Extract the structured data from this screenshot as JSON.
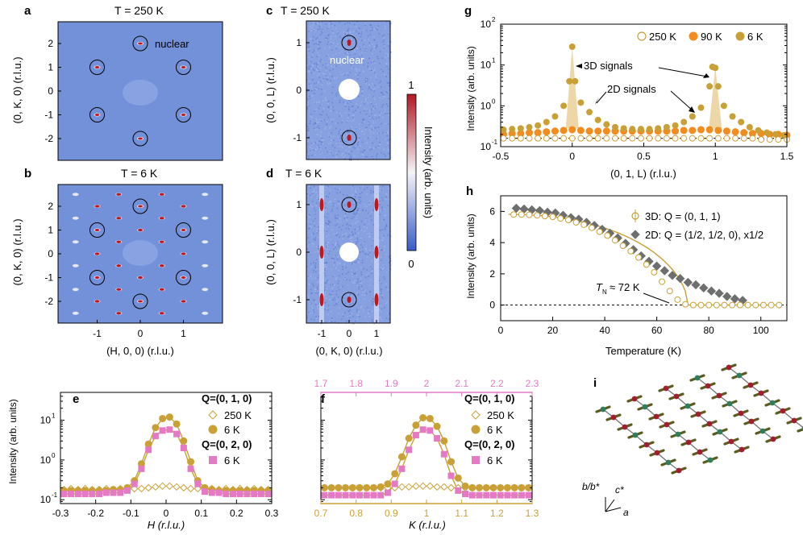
{
  "panel_labels": {
    "a": "a",
    "b": "b",
    "c": "c",
    "d": "d",
    "e": "e",
    "f": "f",
    "g": "g",
    "h": "h",
    "i": "i"
  },
  "titles": {
    "a": "T = 250 K",
    "b": "T = 6 K",
    "c": "T = 250 K",
    "d": "T = 6 K"
  },
  "annotations": {
    "nuclear_a": "nuclear",
    "nuclear_c": "nuclear",
    "signals_3d": "3D signals",
    "signals_2d": "2D signals",
    "tn": "T",
    "tn_sub": "N",
    "tn_val": "≈ 72 K"
  },
  "colorbar": {
    "max": "1",
    "min": "0",
    "label": "Intensity (arb. units)"
  },
  "axes": {
    "ab_y": "(0, K, 0) (r.l.u.)",
    "ab_x": "(H, 0, 0) (r.l.u.)",
    "cd_y": "(0, 0, L) (r.l.u.)",
    "cd_x": "(0, K, 0) (r.l.u.)",
    "e_y": "Intensity (arb. units)",
    "e_x": "H (r.l.u.)",
    "f_x": "K (r.l.u.)",
    "g_y": "Intensity (arb. units)",
    "g_x": "(0, 1, L) (r.l.u.)",
    "h_y": "Intensity (arb. units)",
    "h_x": "Temperature (K)"
  },
  "ticks": {
    "ab_y": [
      "2",
      "1",
      "0",
      "-1",
      "-2"
    ],
    "ab_x": [
      "-1",
      "0",
      "1"
    ],
    "cd_y": [
      "1",
      "0",
      "-1"
    ],
    "cd_x": [
      "-1",
      "0",
      "1"
    ],
    "e_x": [
      "-0.3",
      "-0.2",
      "-0.1",
      "0",
      "0.1",
      "0.2",
      "0.3"
    ],
    "f_x": [
      "0.7",
      "0.8",
      "0.9",
      "1",
      "1.1",
      "1.2",
      "1.3"
    ],
    "f_top": [
      "1.7",
      "1.8",
      "1.9",
      "2",
      "2.1",
      "2.2",
      "2.3"
    ],
    "g_x": [
      "-0.5",
      "0",
      "0.5",
      "1",
      "1.5"
    ],
    "h_x": [
      "0",
      "20",
      "40",
      "60",
      "80",
      "100"
    ],
    "h_y": [
      "0",
      "2",
      "4",
      "6"
    ]
  },
  "legends": {
    "g": [
      "250 K",
      "90 K",
      "6 K"
    ],
    "h": [
      "3D: Q = (0, 1, 1)",
      "2D: Q = (1/2, 1/2, 0), x1/2"
    ],
    "e": [
      "Q=(0, 1, 0)",
      "250 K",
      "6 K",
      "Q=(0, 2, 0)",
      "6 K"
    ],
    "f": [
      "Q=(0, 1, 0)",
      "250 K",
      "6 K",
      "Q=(0, 2, 0)",
      "6 K"
    ]
  },
  "lattice_axes": {
    "b": "b/b*",
    "c": "c*",
    "a": "a"
  },
  "colors": {
    "map_bg": "#7391d9",
    "gold": "#c8a036",
    "orange": "#f28c1e",
    "pink": "#e47ac3",
    "gray": "#6e6e6e",
    "red": "#c0161c"
  },
  "chart_data": [
    {
      "panel": "e",
      "type": "scatter",
      "xlim": [
        -0.3,
        0.3
      ],
      "yscale": "log",
      "ylim": [
        0.08,
        50
      ],
      "series": [
        {
          "name": "250 K",
          "x": [
            -0.29,
            -0.27,
            -0.25,
            -0.23,
            -0.21,
            -0.19,
            -0.17,
            -0.15,
            -0.13,
            -0.11,
            -0.09,
            -0.07,
            -0.05,
            -0.03,
            -0.01,
            0.01,
            0.03,
            0.05,
            0.07,
            0.09,
            0.11,
            0.13,
            0.15,
            0.17,
            0.19,
            0.21,
            0.23,
            0.25,
            0.27,
            0.29
          ],
          "values": [
            0.18,
            0.19,
            0.18,
            0.19,
            0.18,
            0.18,
            0.19,
            0.18,
            0.19,
            0.18,
            0.19,
            0.19,
            0.2,
            0.21,
            0.22,
            0.22,
            0.21,
            0.2,
            0.19,
            0.19,
            0.18,
            0.19,
            0.18,
            0.19,
            0.18,
            0.19,
            0.18,
            0.19,
            0.18,
            0.18
          ]
        },
        {
          "name": "6 K",
          "x": [
            -0.29,
            -0.27,
            -0.25,
            -0.23,
            -0.21,
            -0.19,
            -0.17,
            -0.15,
            -0.13,
            -0.11,
            -0.09,
            -0.07,
            -0.05,
            -0.03,
            -0.01,
            0.01,
            0.03,
            0.05,
            0.07,
            0.09,
            0.11,
            0.13,
            0.15,
            0.17,
            0.19,
            0.21,
            0.23,
            0.25,
            0.27,
            0.29
          ],
          "values": [
            0.17,
            0.17,
            0.17,
            0.17,
            0.17,
            0.17,
            0.17,
            0.18,
            0.18,
            0.2,
            0.3,
            0.8,
            2.5,
            6.5,
            11,
            12,
            8,
            3,
            0.9,
            0.3,
            0.2,
            0.18,
            0.17,
            0.17,
            0.17,
            0.17,
            0.17,
            0.17,
            0.17,
            0.17
          ]
        },
        {
          "name": "Q=(0, 2, 0) 6 K",
          "x": [
            -0.29,
            -0.27,
            -0.25,
            -0.23,
            -0.21,
            -0.19,
            -0.17,
            -0.15,
            -0.13,
            -0.11,
            -0.09,
            -0.07,
            -0.05,
            -0.03,
            -0.01,
            0.01,
            0.03,
            0.05,
            0.07,
            0.09,
            0.11,
            0.13,
            0.15,
            0.17,
            0.19,
            0.21,
            0.23,
            0.25,
            0.27,
            0.29
          ],
          "values": [
            0.14,
            0.14,
            0.14,
            0.14,
            0.14,
            0.14,
            0.15,
            0.15,
            0.15,
            0.17,
            0.25,
            0.6,
            1.8,
            4,
            5.5,
            5.8,
            4.5,
            2,
            0.6,
            0.25,
            0.16,
            0.15,
            0.15,
            0.14,
            0.14,
            0.14,
            0.14,
            0.14,
            0.14,
            0.14
          ]
        }
      ]
    },
    {
      "panel": "f",
      "type": "scatter",
      "xlim": [
        0.7,
        1.3
      ],
      "x2lim": [
        1.7,
        2.3
      ],
      "yscale": "log",
      "ylim": [
        0.08,
        50
      ],
      "series": [
        {
          "name": "250 K",
          "x": [
            0.71,
            0.73,
            0.75,
            0.77,
            0.79,
            0.81,
            0.83,
            0.85,
            0.87,
            0.89,
            0.91,
            0.93,
            0.95,
            0.97,
            0.99,
            1.01,
            1.03,
            1.05,
            1.07,
            1.09,
            1.11,
            1.13,
            1.15,
            1.17,
            1.19,
            1.21,
            1.23,
            1.25,
            1.27,
            1.29
          ],
          "values": [
            0.2,
            0.2,
            0.2,
            0.2,
            0.2,
            0.2,
            0.2,
            0.2,
            0.2,
            0.2,
            0.2,
            0.21,
            0.21,
            0.22,
            0.22,
            0.22,
            0.21,
            0.21,
            0.2,
            0.2,
            0.2,
            0.2,
            0.2,
            0.2,
            0.2,
            0.2,
            0.2,
            0.2,
            0.2,
            0.2
          ]
        },
        {
          "name": "6 K",
          "x": [
            0.71,
            0.73,
            0.75,
            0.77,
            0.79,
            0.81,
            0.83,
            0.85,
            0.87,
            0.89,
            0.91,
            0.93,
            0.95,
            0.97,
            0.99,
            1.01,
            1.03,
            1.05,
            1.07,
            1.09,
            1.11,
            1.13,
            1.15,
            1.17,
            1.19,
            1.21,
            1.23,
            1.25,
            1.27,
            1.29
          ],
          "values": [
            0.2,
            0.2,
            0.2,
            0.2,
            0.2,
            0.2,
            0.2,
            0.2,
            0.21,
            0.25,
            0.45,
            1.2,
            3.5,
            7.5,
            11.5,
            11,
            7,
            3,
            0.9,
            0.35,
            0.22,
            0.2,
            0.2,
            0.2,
            0.2,
            0.2,
            0.2,
            0.2,
            0.2,
            0.2
          ]
        },
        {
          "name": "Q=(0, 2, 0) 6 K",
          "x": [
            0.71,
            0.73,
            0.75,
            0.77,
            0.79,
            0.81,
            0.83,
            0.85,
            0.87,
            0.89,
            0.91,
            0.93,
            0.95,
            0.97,
            0.99,
            1.01,
            1.03,
            1.05,
            1.07,
            1.09,
            1.11,
            1.13,
            1.15,
            1.17,
            1.19,
            1.21,
            1.23,
            1.25,
            1.27,
            1.29
          ],
          "values": [
            0.13,
            0.13,
            0.13,
            0.13,
            0.13,
            0.13,
            0.13,
            0.13,
            0.13,
            0.15,
            0.25,
            0.6,
            1.8,
            4.2,
            5.8,
            5.5,
            3.5,
            1.4,
            0.4,
            0.17,
            0.14,
            0.13,
            0.13,
            0.13,
            0.13,
            0.13,
            0.13,
            0.13,
            0.13,
            0.13
          ]
        }
      ]
    },
    {
      "panel": "g",
      "type": "scatter",
      "xlim": [
        -0.5,
        1.5
      ],
      "yscale": "log",
      "ylim": [
        0.1,
        100
      ],
      "series": [
        {
          "name": "250 K",
          "x": [
            -0.48,
            -0.42,
            -0.36,
            -0.3,
            -0.24,
            -0.18,
            -0.12,
            -0.06,
            0.0,
            0.06,
            0.12,
            0.18,
            0.24,
            0.3,
            0.36,
            0.42,
            0.48,
            0.54,
            0.6,
            0.66,
            0.72,
            0.78,
            0.84,
            0.9,
            0.96,
            1.02,
            1.08,
            1.14,
            1.2,
            1.26,
            1.32,
            1.38,
            1.44,
            1.5
          ],
          "values": [
            0.16,
            0.16,
            0.16,
            0.16,
            0.16,
            0.16,
            0.16,
            0.16,
            0.16,
            0.16,
            0.16,
            0.16,
            0.16,
            0.16,
            0.16,
            0.16,
            0.16,
            0.16,
            0.16,
            0.16,
            0.16,
            0.16,
            0.16,
            0.16,
            0.16,
            0.16,
            0.16,
            0.16,
            0.16,
            0.16,
            0.15,
            0.15,
            0.15,
            0.15
          ]
        },
        {
          "name": "90 K",
          "x": [
            -0.48,
            -0.42,
            -0.36,
            -0.3,
            -0.24,
            -0.18,
            -0.12,
            -0.06,
            0.0,
            0.06,
            0.12,
            0.18,
            0.24,
            0.3,
            0.36,
            0.42,
            0.48,
            0.54,
            0.6,
            0.66,
            0.72,
            0.78,
            0.84,
            0.9,
            0.96,
            1.02,
            1.08,
            1.14,
            1.2,
            1.26,
            1.32,
            1.38,
            1.44,
            1.5
          ],
          "values": [
            0.2,
            0.21,
            0.21,
            0.22,
            0.22,
            0.23,
            0.24,
            0.25,
            0.26,
            0.25,
            0.24,
            0.24,
            0.24,
            0.24,
            0.24,
            0.24,
            0.24,
            0.24,
            0.24,
            0.24,
            0.24,
            0.25,
            0.25,
            0.26,
            0.26,
            0.25,
            0.24,
            0.23,
            0.22,
            0.21,
            0.21,
            0.2,
            0.2,
            0.19
          ]
        },
        {
          "name": "6 K",
          "x": [
            -0.48,
            -0.42,
            -0.36,
            -0.3,
            -0.24,
            -0.18,
            -0.12,
            -0.06,
            -0.02,
            0.0,
            0.02,
            0.06,
            0.12,
            0.18,
            0.24,
            0.3,
            0.36,
            0.42,
            0.48,
            0.54,
            0.6,
            0.66,
            0.72,
            0.78,
            0.84,
            0.9,
            0.96,
            0.98,
            1.0,
            1.02,
            1.06,
            1.12,
            1.18,
            1.24,
            1.3,
            1.36,
            1.42,
            1.48
          ],
          "values": [
            0.26,
            0.27,
            0.28,
            0.3,
            0.33,
            0.4,
            0.55,
            1.0,
            4,
            28,
            4,
            1.2,
            0.7,
            0.45,
            0.35,
            0.3,
            0.28,
            0.27,
            0.27,
            0.27,
            0.28,
            0.3,
            0.33,
            0.4,
            0.55,
            0.9,
            3,
            9,
            8.5,
            3,
            1.0,
            0.55,
            0.4,
            0.3,
            0.25,
            0.22,
            0.2,
            0.19
          ]
        }
      ]
    },
    {
      "panel": "h",
      "type": "scatter",
      "xlim": [
        0,
        110
      ],
      "ylim": [
        -1,
        7
      ],
      "series": [
        {
          "name": "3D: Q = (0, 1, 1)",
          "x": [
            5,
            8,
            11,
            14,
            17,
            20,
            23,
            26,
            29,
            32,
            35,
            38,
            41,
            44,
            47,
            50,
            53,
            56,
            59,
            62,
            65,
            68,
            71,
            74,
            77,
            80,
            83,
            86,
            89,
            92,
            95,
            98,
            101,
            104,
            107
          ],
          "values": [
            5.8,
            5.8,
            5.78,
            5.75,
            5.7,
            5.65,
            5.55,
            5.45,
            5.3,
            5.15,
            4.95,
            4.7,
            4.45,
            4.15,
            3.8,
            3.45,
            3.05,
            2.6,
            2.1,
            1.5,
            0.9,
            0.35,
            0.05,
            0,
            0,
            0,
            0,
            0,
            0,
            0,
            0,
            0,
            0,
            0,
            0
          ]
        },
        {
          "name": "2D: Q = (1/2, 1/2, 0), x1/2",
          "x": [
            6,
            9,
            12,
            15,
            18,
            21,
            24,
            27,
            30,
            33,
            36,
            39,
            42,
            45,
            48,
            51,
            54,
            57,
            60,
            63,
            66,
            69,
            72,
            75,
            78,
            81,
            84,
            87,
            90,
            93
          ],
          "values": [
            6.2,
            6.15,
            6.1,
            6.05,
            5.95,
            5.9,
            5.75,
            5.6,
            5.5,
            5.3,
            5.1,
            4.85,
            4.6,
            4.3,
            3.95,
            3.55,
            3.15,
            2.8,
            2.5,
            2.2,
            1.9,
            1.7,
            1.45,
            1.3,
            1.1,
            0.9,
            0.75,
            0.55,
            0.4,
            0.3
          ]
        }
      ]
    }
  ]
}
